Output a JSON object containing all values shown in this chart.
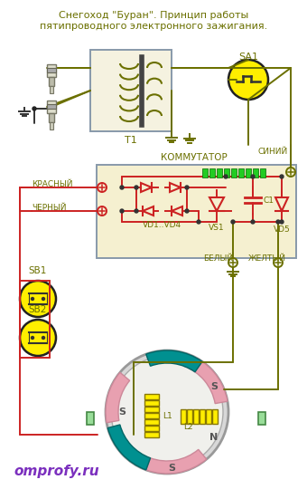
{
  "title_line1": "Снегоход \"Буран\". Принцип работы",
  "title_line2": "пятипроводного электронного зажигания.",
  "title_color": "#556b00",
  "bg_color": "#ffffff",
  "watermark": "omprofy.ru",
  "watermark_color": "#7b2fbe",
  "dark_olive": "#6b7000",
  "red": "#cc2222",
  "yellow_fill": "#ffee00",
  "pink_fill": "#e8a0b0",
  "teal_fill": "#009090",
  "purple_text": "#7b2fbe",
  "kom_face": "#f5f0d0",
  "kom_edge": "#8899aa",
  "t1_face": "#f5f2e0",
  "t1_edge": "#8899aa"
}
